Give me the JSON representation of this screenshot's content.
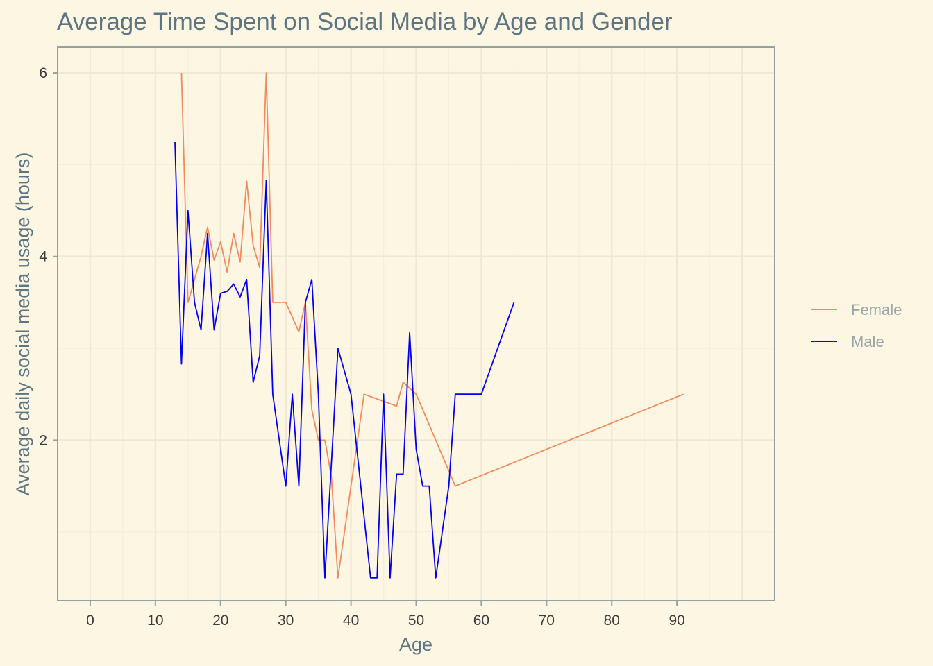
{
  "chart_data": {
    "type": "line",
    "title": "Average Time Spent on Social Media by Age and Gender",
    "xlabel": "Age",
    "ylabel": "Average daily social media usage (hours)",
    "xlim": [
      -5,
      105
    ],
    "ylim": [
      0.25,
      6.28
    ],
    "x_ticks": [
      0,
      10,
      20,
      30,
      40,
      50,
      60,
      70,
      80,
      90
    ],
    "y_ticks": [
      2,
      4,
      6
    ],
    "grid": true,
    "legend_position": "right",
    "colors": {
      "background": "#fdf6e3",
      "panel_border": "#93a1a1",
      "grid_major": "#eee8d5",
      "grid_minor": "#f4eedc"
    },
    "series": [
      {
        "name": "Female",
        "color": "#f28a5b",
        "points": [
          [
            14,
            6.0
          ],
          [
            15,
            3.5
          ],
          [
            16,
            3.75
          ],
          [
            17,
            4.0
          ],
          [
            18,
            4.32
          ],
          [
            19,
            3.96
          ],
          [
            20,
            4.16
          ],
          [
            21,
            3.83
          ],
          [
            22,
            4.25
          ],
          [
            23,
            3.94
          ],
          [
            24,
            4.82
          ],
          [
            25,
            4.12
          ],
          [
            26,
            3.88
          ],
          [
            27,
            6.0
          ],
          [
            28,
            3.5
          ],
          [
            30,
            3.5
          ],
          [
            32,
            3.18
          ],
          [
            33,
            3.5
          ],
          [
            34,
            2.33
          ],
          [
            35,
            2.0
          ],
          [
            36,
            2.0
          ],
          [
            37,
            1.6
          ],
          [
            38,
            0.5
          ],
          [
            40,
            1.5
          ],
          [
            42,
            2.5
          ],
          [
            47,
            2.37
          ],
          [
            48,
            2.63
          ],
          [
            50,
            2.5
          ],
          [
            56,
            1.5
          ],
          [
            91,
            2.5
          ]
        ]
      },
      {
        "name": "Male",
        "color": "#0000ee",
        "points": [
          [
            13,
            5.25
          ],
          [
            14,
            2.83
          ],
          [
            15,
            4.5
          ],
          [
            16,
            3.5
          ],
          [
            17,
            3.2
          ],
          [
            18,
            4.25
          ],
          [
            19,
            3.2
          ],
          [
            20,
            3.6
          ],
          [
            21,
            3.62
          ],
          [
            22,
            3.7
          ],
          [
            23,
            3.56
          ],
          [
            24,
            3.75
          ],
          [
            25,
            2.63
          ],
          [
            26,
            2.92
          ],
          [
            27,
            4.83
          ],
          [
            28,
            2.5
          ],
          [
            30,
            1.5
          ],
          [
            31,
            2.5
          ],
          [
            32,
            1.5
          ],
          [
            33,
            3.5
          ],
          [
            34,
            3.75
          ],
          [
            35,
            2.5
          ],
          [
            36,
            0.5
          ],
          [
            38,
            3.0
          ],
          [
            40,
            2.5
          ],
          [
            43,
            0.5
          ],
          [
            44,
            0.5
          ],
          [
            45,
            2.5
          ],
          [
            46,
            0.5
          ],
          [
            47,
            1.63
          ],
          [
            48,
            1.63
          ],
          [
            49,
            3.17
          ],
          [
            50,
            1.9
          ],
          [
            51,
            1.5
          ],
          [
            52,
            1.5
          ],
          [
            53,
            0.5
          ],
          [
            55,
            1.5
          ],
          [
            56,
            2.5
          ],
          [
            60,
            2.5
          ],
          [
            65,
            3.5
          ]
        ]
      }
    ]
  }
}
